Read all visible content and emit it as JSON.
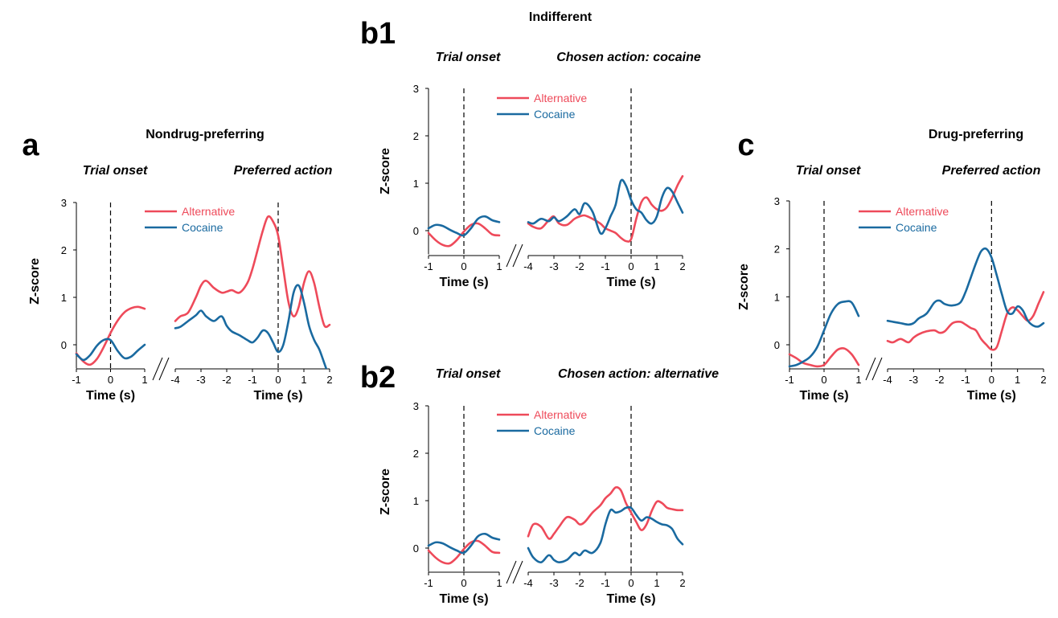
{
  "colors": {
    "alternative": "#ee4a5a",
    "cocaine": "#1a6aa0",
    "axis": "#000000"
  },
  "legend": {
    "alternative": "Alternative",
    "cocaine": "Cocaine"
  },
  "panels": [
    {
      "letter": "a",
      "group_title": "Nondrug-preferring",
      "left_title": "Trial onset",
      "right_title": "Preferred action",
      "ylabel": "Z-score",
      "xlabel_left": "Time (s)",
      "xlabel_right": "Time (s)",
      "yticks": [
        "0",
        "1",
        "2",
        "3"
      ],
      "xticks_left": [
        "-1",
        "0",
        "1"
      ],
      "xticks_right": [
        "-4",
        "-3",
        "-2",
        "-1",
        "0",
        "1",
        "2"
      ]
    },
    {
      "letter": "b1",
      "group_title": "Indifferent",
      "left_title": "Trial onset",
      "right_title": "Chosen action: cocaine",
      "ylabel": "Z-score",
      "xlabel_left": "Time (s)",
      "xlabel_right": "Time (s)",
      "yticks": [
        "0",
        "1",
        "2",
        "3"
      ],
      "xticks_left": [
        "-1",
        "0",
        "1"
      ],
      "xticks_right": [
        "-4",
        "-3",
        "-2",
        "-1",
        "0",
        "1",
        "2"
      ]
    },
    {
      "letter": "b2",
      "group_title": "",
      "left_title": "Trial onset",
      "right_title": "Chosen action: alternative",
      "ylabel": "Z-score",
      "xlabel_left": "Time (s)",
      "xlabel_right": "Time (s)",
      "yticks": [
        "0",
        "1",
        "2",
        "3"
      ],
      "xticks_left": [
        "-1",
        "0",
        "1"
      ],
      "xticks_right": [
        "-4",
        "-3",
        "-2",
        "-1",
        "0",
        "1",
        "2"
      ]
    },
    {
      "letter": "c",
      "group_title": "Drug-preferring",
      "left_title": "Trial onset",
      "right_title": "Preferred action",
      "ylabel": "Z-score",
      "xlabel_left": "Time (s)",
      "xlabel_right": "Time (s)",
      "yticks": [
        "0",
        "1",
        "2",
        "3"
      ],
      "xticks_left": [
        "-1",
        "0",
        "1"
      ],
      "xticks_right": [
        "-4",
        "-3",
        "-2",
        "-1",
        "0",
        "1",
        "2"
      ]
    }
  ],
  "chart_data": [
    {
      "type": "line",
      "panel": "a",
      "ylim": [
        -0.5,
        3
      ],
      "onset": {
        "xlim": [
          -1,
          1
        ],
        "series": [
          {
            "name": "Alternative",
            "x": [
              -1,
              -0.8,
              -0.6,
              -0.4,
              -0.2,
              0,
              0.2,
              0.4,
              0.6,
              0.8,
              1
            ],
            "y": [
              -0.18,
              -0.35,
              -0.42,
              -0.3,
              -0.05,
              0.25,
              0.5,
              0.68,
              0.77,
              0.8,
              0.76
            ]
          },
          {
            "name": "Cocaine",
            "x": [
              -1,
              -0.8,
              -0.6,
              -0.4,
              -0.2,
              0,
              0.2,
              0.4,
              0.6,
              0.8,
              1
            ],
            "y": [
              -0.2,
              -0.32,
              -0.22,
              -0.02,
              0.1,
              0.1,
              -0.12,
              -0.28,
              -0.25,
              -0.12,
              0.0
            ]
          }
        ]
      },
      "action": {
        "xlim": [
          -4,
          2
        ],
        "series": [
          {
            "name": "Alternative",
            "x": [
              -4,
              -3.8,
              -3.5,
              -3.2,
              -3,
              -2.8,
              -2.5,
              -2.2,
              -2,
              -1.8,
              -1.5,
              -1.2,
              -1,
              -0.8,
              -0.6,
              -0.4,
              -0.2,
              0,
              0.2,
              0.4,
              0.6,
              0.8,
              1,
              1.2,
              1.4,
              1.6,
              1.8,
              2
            ],
            "y": [
              0.5,
              0.6,
              0.68,
              1.0,
              1.25,
              1.35,
              1.2,
              1.1,
              1.12,
              1.15,
              1.1,
              1.3,
              1.6,
              2.0,
              2.4,
              2.7,
              2.6,
              2.3,
              1.6,
              0.9,
              0.6,
              0.8,
              1.3,
              1.55,
              1.3,
              0.8,
              0.4,
              0.42
            ]
          },
          {
            "name": "Cocaine",
            "x": [
              -4,
              -3.8,
              -3.5,
              -3.2,
              -3,
              -2.8,
              -2.5,
              -2.2,
              -2,
              -1.8,
              -1.5,
              -1.2,
              -1,
              -0.8,
              -0.6,
              -0.4,
              -0.2,
              0,
              0.2,
              0.4,
              0.6,
              0.8,
              1,
              1.2,
              1.4,
              1.6,
              1.8,
              2
            ],
            "y": [
              0.35,
              0.38,
              0.5,
              0.62,
              0.72,
              0.6,
              0.5,
              0.6,
              0.4,
              0.28,
              0.2,
              0.1,
              0.05,
              0.15,
              0.3,
              0.25,
              0.05,
              -0.15,
              0.0,
              0.5,
              1.1,
              1.25,
              0.9,
              0.4,
              0.1,
              -0.1,
              -0.4,
              -0.7
            ]
          }
        ]
      }
    },
    {
      "type": "line",
      "panel": "b1",
      "ylim": [
        -0.5,
        3
      ],
      "onset": {
        "xlim": [
          -1,
          1
        ],
        "series": [
          {
            "name": "Alternative",
            "x": [
              -1,
              -0.8,
              -0.6,
              -0.4,
              -0.2,
              0,
              0.2,
              0.4,
              0.6,
              0.8,
              1
            ],
            "y": [
              -0.05,
              -0.2,
              -0.3,
              -0.32,
              -0.2,
              -0.02,
              0.12,
              0.15,
              0.05,
              -0.08,
              -0.1
            ]
          },
          {
            "name": "Cocaine",
            "x": [
              -1,
              -0.8,
              -0.6,
              -0.4,
              -0.2,
              0,
              0.2,
              0.4,
              0.6,
              0.8,
              1
            ],
            "y": [
              0.05,
              0.12,
              0.1,
              0.02,
              -0.05,
              -0.1,
              0.05,
              0.25,
              0.3,
              0.22,
              0.18
            ]
          }
        ]
      },
      "action": {
        "xlim": [
          -4,
          2
        ],
        "series": [
          {
            "name": "Alternative",
            "x": [
              -4,
              -3.8,
              -3.5,
              -3.2,
              -3,
              -2.8,
              -2.5,
              -2.2,
              -2,
              -1.8,
              -1.5,
              -1.2,
              -1,
              -0.8,
              -0.6,
              -0.4,
              -0.2,
              0,
              0.2,
              0.4,
              0.6,
              0.8,
              1,
              1.2,
              1.4,
              1.6,
              1.8,
              2
            ],
            "y": [
              0.15,
              0.08,
              0.05,
              0.22,
              0.3,
              0.15,
              0.12,
              0.25,
              0.3,
              0.32,
              0.25,
              0.15,
              0.05,
              0.0,
              -0.05,
              -0.15,
              -0.22,
              -0.18,
              0.25,
              0.6,
              0.7,
              0.55,
              0.45,
              0.42,
              0.5,
              0.7,
              0.95,
              1.15
            ]
          },
          {
            "name": "Cocaine",
            "x": [
              -4,
              -3.8,
              -3.5,
              -3.2,
              -3,
              -2.8,
              -2.5,
              -2.2,
              -2,
              -1.8,
              -1.5,
              -1.2,
              -1,
              -0.8,
              -0.6,
              -0.4,
              -0.2,
              0,
              0.2,
              0.4,
              0.6,
              0.8,
              1,
              1.2,
              1.4,
              1.6,
              1.8,
              2
            ],
            "y": [
              0.18,
              0.15,
              0.25,
              0.2,
              0.28,
              0.2,
              0.3,
              0.45,
              0.35,
              0.58,
              0.4,
              -0.05,
              0.05,
              0.3,
              0.55,
              1.05,
              0.95,
              0.65,
              0.45,
              0.38,
              0.22,
              0.15,
              0.3,
              0.7,
              0.9,
              0.82,
              0.6,
              0.38
            ]
          }
        ]
      }
    },
    {
      "type": "line",
      "panel": "b2",
      "ylim": [
        -0.5,
        3
      ],
      "onset": {
        "xlim": [
          -1,
          1
        ],
        "series": [
          {
            "name": "Alternative",
            "x": [
              -1,
              -0.8,
              -0.6,
              -0.4,
              -0.2,
              0,
              0.2,
              0.4,
              0.6,
              0.8,
              1
            ],
            "y": [
              -0.05,
              -0.2,
              -0.3,
              -0.32,
              -0.2,
              -0.02,
              0.12,
              0.15,
              0.05,
              -0.08,
              -0.1
            ]
          },
          {
            "name": "Cocaine",
            "x": [
              -1,
              -0.8,
              -0.6,
              -0.4,
              -0.2,
              0,
              0.2,
              0.4,
              0.6,
              0.8,
              1
            ],
            "y": [
              0.05,
              0.12,
              0.1,
              0.02,
              -0.05,
              -0.1,
              0.05,
              0.25,
              0.3,
              0.22,
              0.18
            ]
          }
        ]
      },
      "action": {
        "xlim": [
          -4,
          2
        ],
        "series": [
          {
            "name": "Alternative",
            "x": [
              -4,
              -3.8,
              -3.5,
              -3.2,
              -3,
              -2.8,
              -2.5,
              -2.2,
              -2,
              -1.8,
              -1.5,
              -1.2,
              -1,
              -0.8,
              -0.6,
              -0.4,
              -0.2,
              0,
              0.2,
              0.4,
              0.6,
              0.8,
              1,
              1.2,
              1.4,
              1.6,
              1.8,
              2
            ],
            "y": [
              0.25,
              0.5,
              0.45,
              0.2,
              0.3,
              0.45,
              0.65,
              0.6,
              0.5,
              0.55,
              0.75,
              0.9,
              1.05,
              1.15,
              1.28,
              1.22,
              0.95,
              0.75,
              0.55,
              0.38,
              0.5,
              0.78,
              0.98,
              0.95,
              0.85,
              0.82,
              0.8,
              0.8
            ]
          },
          {
            "name": "Cocaine",
            "x": [
              -4,
              -3.8,
              -3.5,
              -3.2,
              -3,
              -2.8,
              -2.5,
              -2.2,
              -2,
              -1.8,
              -1.5,
              -1.2,
              -1,
              -0.8,
              -0.6,
              -0.4,
              -0.2,
              0,
              0.2,
              0.4,
              0.6,
              0.8,
              1,
              1.2,
              1.4,
              1.6,
              1.8,
              2
            ],
            "y": [
              0.0,
              -0.2,
              -0.3,
              -0.15,
              -0.25,
              -0.3,
              -0.25,
              -0.1,
              -0.15,
              -0.05,
              -0.1,
              0.1,
              0.5,
              0.8,
              0.75,
              0.78,
              0.85,
              0.85,
              0.7,
              0.58,
              0.65,
              0.62,
              0.55,
              0.5,
              0.48,
              0.4,
              0.2,
              0.08
            ]
          }
        ]
      }
    },
    {
      "type": "line",
      "panel": "c",
      "ylim": [
        -0.5,
        3
      ],
      "onset": {
        "xlim": [
          -1,
          1
        ],
        "series": [
          {
            "name": "Alternative",
            "x": [
              -1,
              -0.8,
              -0.6,
              -0.4,
              -0.2,
              0,
              0.2,
              0.4,
              0.6,
              0.8,
              1
            ],
            "y": [
              -0.2,
              -0.28,
              -0.38,
              -0.42,
              -0.45,
              -0.42,
              -0.25,
              -0.1,
              -0.08,
              -0.2,
              -0.42
            ]
          },
          {
            "name": "Cocaine",
            "x": [
              -1,
              -0.8,
              -0.6,
              -0.4,
              -0.2,
              0,
              0.2,
              0.4,
              0.6,
              0.8,
              1
            ],
            "y": [
              -0.45,
              -0.42,
              -0.35,
              -0.25,
              -0.05,
              0.3,
              0.65,
              0.85,
              0.9,
              0.88,
              0.6
            ]
          }
        ]
      },
      "action": {
        "xlim": [
          -4,
          2
        ],
        "series": [
          {
            "name": "Alternative",
            "x": [
              -4,
              -3.8,
              -3.5,
              -3.2,
              -3,
              -2.8,
              -2.5,
              -2.2,
              -2,
              -1.8,
              -1.5,
              -1.2,
              -1,
              -0.8,
              -0.6,
              -0.4,
              -0.2,
              0,
              0.2,
              0.4,
              0.6,
              0.8,
              1,
              1.2,
              1.4,
              1.6,
              1.8,
              2
            ],
            "y": [
              0.08,
              0.05,
              0.12,
              0.05,
              0.15,
              0.22,
              0.28,
              0.3,
              0.25,
              0.28,
              0.45,
              0.48,
              0.42,
              0.35,
              0.3,
              0.12,
              0.0,
              -0.1,
              -0.05,
              0.3,
              0.65,
              0.78,
              0.72,
              0.6,
              0.5,
              0.6,
              0.85,
              1.1
            ]
          },
          {
            "name": "Cocaine",
            "x": [
              -4,
              -3.8,
              -3.5,
              -3.2,
              -3,
              -2.8,
              -2.5,
              -2.2,
              -2,
              -1.8,
              -1.5,
              -1.2,
              -1,
              -0.8,
              -0.6,
              -0.4,
              -0.2,
              0,
              0.2,
              0.4,
              0.6,
              0.8,
              1,
              1.2,
              1.4,
              1.6,
              1.8,
              2
            ],
            "y": [
              0.5,
              0.48,
              0.45,
              0.42,
              0.45,
              0.55,
              0.65,
              0.88,
              0.92,
              0.85,
              0.82,
              0.88,
              1.1,
              1.4,
              1.7,
              1.95,
              2.0,
              1.82,
              1.45,
              1.05,
              0.7,
              0.65,
              0.8,
              0.72,
              0.5,
              0.4,
              0.38,
              0.45
            ]
          }
        ]
      }
    }
  ]
}
